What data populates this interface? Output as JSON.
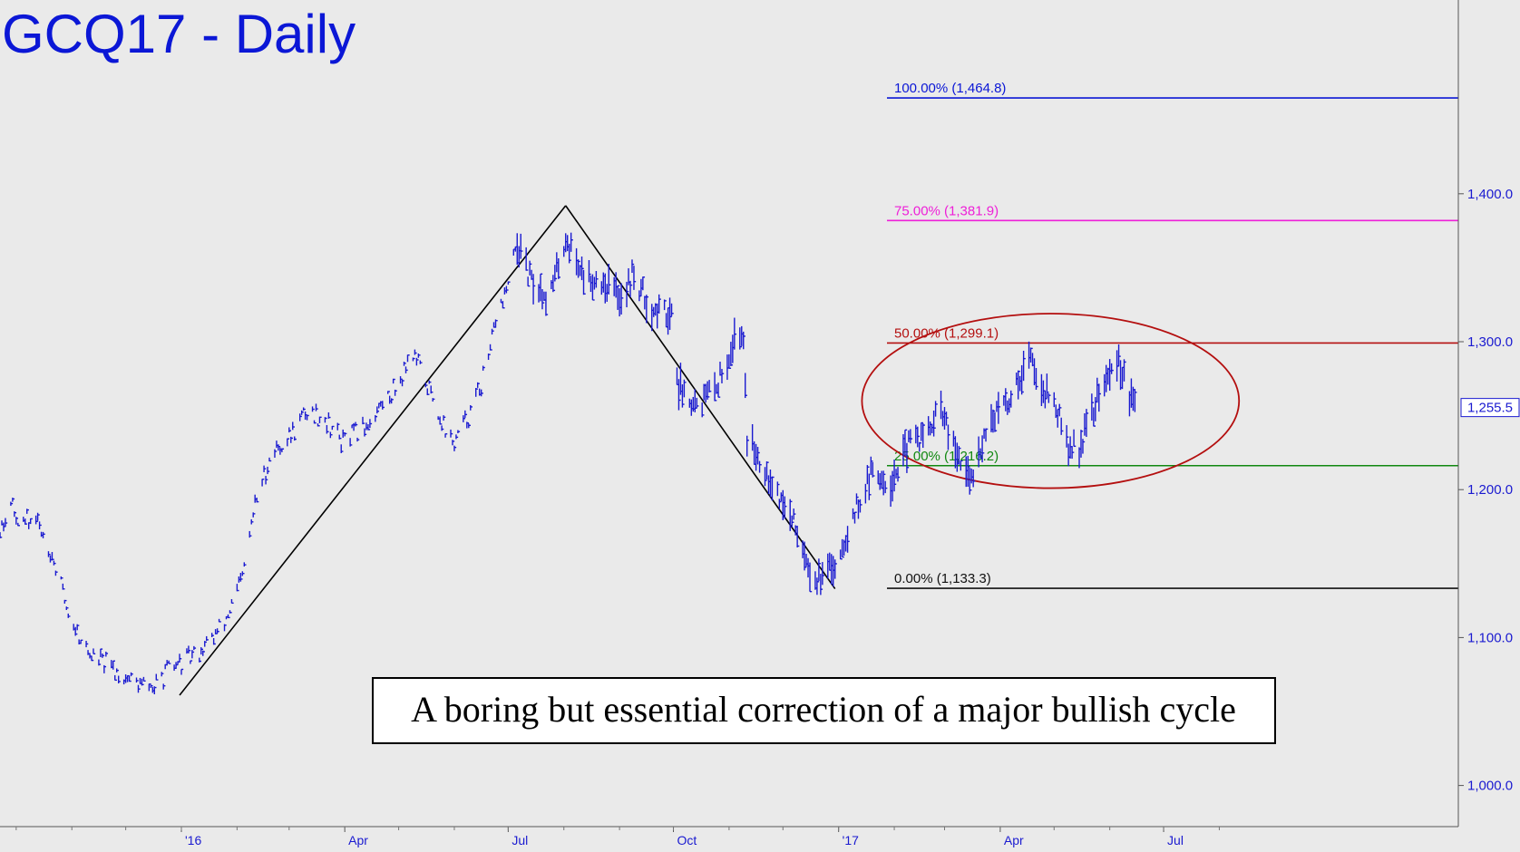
{
  "chart_data": {
    "type": "ohlc",
    "title": "GCQ17 - Daily",
    "annotation": "A boring but essential correction of a major bullish cycle",
    "ylim": [
      960,
      1510
    ],
    "y_ticks": [
      {
        "value": 1000,
        "label": "1,000.0"
      },
      {
        "value": 1100,
        "label": "1,100.0"
      },
      {
        "value": 1200,
        "label": "1,200.0"
      },
      {
        "value": 1300,
        "label": "1,300.0"
      },
      {
        "value": 1400,
        "label": "1,400.0"
      }
    ],
    "x_ticks": [
      "'16",
      "Apr",
      "Jul",
      "Oct",
      "'17",
      "Apr",
      "Jul"
    ],
    "last_price": {
      "value": 1255.5,
      "label": "1,255.5"
    },
    "fib_levels": [
      {
        "pct": "0.00%",
        "value": 1133.3,
        "label": "0.00% (1,133.3)",
        "color": "#111111"
      },
      {
        "pct": "25.00%",
        "value": 1216.2,
        "label": "25.00% (1,216.2)",
        "color": "#118811"
      },
      {
        "pct": "50.00%",
        "value": 1299.1,
        "label": "50.00% (1,299.1)",
        "color": "#b40f0f"
      },
      {
        "pct": "75.00%",
        "value": 1381.9,
        "label": "75.00% (1,381.9)",
        "color": "#ee1fd8"
      },
      {
        "pct": "100.00%",
        "value": 1464.8,
        "label": "100.00% (1,464.8)",
        "color": "#0b17d6"
      }
    ],
    "trend_lines": [
      {
        "from": {
          "date": "2015-12-31",
          "value": 1061
        },
        "to": {
          "date": "2016-08-02",
          "value": 1392
        }
      },
      {
        "from": {
          "date": "2016-08-02",
          "value": 1392
        },
        "to": {
          "date": "2016-12-30",
          "value": 1133
        }
      }
    ],
    "ellipse": {
      "center": {
        "date": "2017-04-29",
        "value": 1260
      },
      "semi_axis_days": 105,
      "semi_axis_value": 59
    },
    "series": [
      {
        "price_path": [
          [
            "2015-09-01",
            1129
          ],
          [
            "2015-09-10",
            1150
          ],
          [
            "2015-09-20",
            1170
          ],
          [
            "2015-09-27",
            1189
          ],
          [
            "2015-10-05",
            1178
          ],
          [
            "2015-10-12",
            1180
          ],
          [
            "2015-10-20",
            1160
          ],
          [
            "2015-10-30",
            1117
          ],
          [
            "2015-11-10",
            1090
          ],
          [
            "2015-11-20",
            1082
          ],
          [
            "2015-11-30",
            1074
          ],
          [
            "2015-12-10",
            1068
          ],
          [
            "2015-12-17",
            1066
          ],
          [
            "2015-12-25",
            1078
          ],
          [
            "2016-01-05",
            1085
          ],
          [
            "2016-01-15",
            1095
          ],
          [
            "2016-01-25",
            1110
          ],
          [
            "2016-02-04",
            1140
          ],
          [
            "2016-02-11",
            1190
          ],
          [
            "2016-02-20",
            1225
          ],
          [
            "2016-03-01",
            1235
          ],
          [
            "2016-03-10",
            1252
          ],
          [
            "2016-03-20",
            1250
          ],
          [
            "2016-03-31",
            1232
          ],
          [
            "2016-04-10",
            1240
          ],
          [
            "2016-04-20",
            1255
          ],
          [
            "2016-05-01",
            1272
          ],
          [
            "2016-05-08",
            1295
          ],
          [
            "2016-05-20",
            1262
          ],
          [
            "2016-05-31",
            1230
          ],
          [
            "2016-06-10",
            1252
          ],
          [
            "2016-06-20",
            1285
          ],
          [
            "2016-06-24",
            1316
          ],
          [
            "2016-07-01",
            1338
          ],
          [
            "2016-07-06",
            1365
          ],
          [
            "2016-07-14",
            1340
          ],
          [
            "2016-07-24",
            1330
          ],
          [
            "2016-08-02",
            1370
          ],
          [
            "2016-08-12",
            1345
          ],
          [
            "2016-08-24",
            1340
          ],
          [
            "2016-09-03",
            1330
          ],
          [
            "2016-09-08",
            1345
          ],
          [
            "2016-09-20",
            1320
          ],
          [
            "2016-09-30",
            1320
          ],
          [
            "2016-10-04",
            1270
          ],
          [
            "2016-10-15",
            1258
          ],
          [
            "2016-10-25",
            1270
          ],
          [
            "2016-11-04",
            1302
          ],
          [
            "2016-11-09",
            1305
          ],
          [
            "2016-11-11",
            1235
          ],
          [
            "2016-11-20",
            1218
          ],
          [
            "2016-12-01",
            1190
          ],
          [
            "2016-12-10",
            1170
          ],
          [
            "2016-12-18",
            1140
          ],
          [
            "2016-12-24",
            1140
          ],
          [
            "2016-12-30",
            1150
          ],
          [
            "2017-01-10",
            1185
          ],
          [
            "2017-01-20",
            1212
          ],
          [
            "2017-01-30",
            1205
          ],
          [
            "2017-02-10",
            1232
          ],
          [
            "2017-02-20",
            1238
          ],
          [
            "2017-02-27",
            1255
          ],
          [
            "2017-03-05",
            1230
          ],
          [
            "2017-03-15",
            1205
          ],
          [
            "2017-03-25",
            1245
          ],
          [
            "2017-04-05",
            1258
          ],
          [
            "2017-04-17",
            1290
          ],
          [
            "2017-04-24",
            1272
          ],
          [
            "2017-05-02",
            1255
          ],
          [
            "2017-05-09",
            1228
          ],
          [
            "2017-05-15",
            1228
          ],
          [
            "2017-05-25",
            1262
          ],
          [
            "2017-06-06",
            1288
          ],
          [
            "2017-06-12",
            1262
          ],
          [
            "2017-06-15",
            1255
          ]
        ]
      }
    ]
  }
}
